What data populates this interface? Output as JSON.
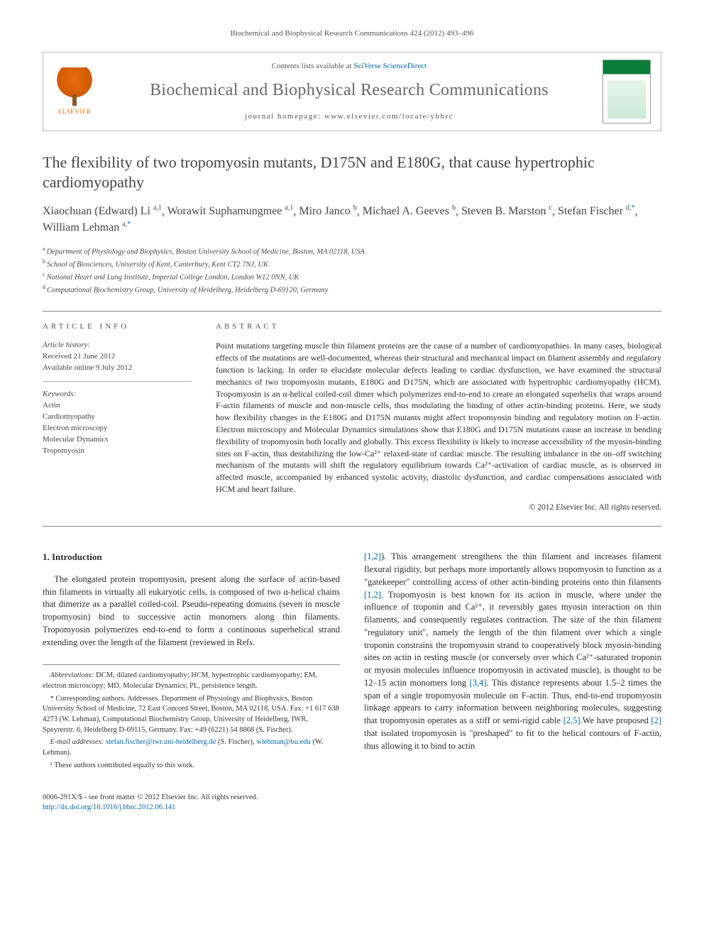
{
  "citation": "Biochemical and Biophysical Research Communications 424 (2012) 493–496",
  "header": {
    "contents_prefix": "Contents lists available at ",
    "contents_link": "SciVerse ScienceDirect",
    "journal": "Biochemical and Biophysical Research Communications",
    "homepage_prefix": "journal homepage: ",
    "homepage_url": "www.elsevier.com/locate/ybbrc",
    "publisher": "ELSEVIER"
  },
  "title": "The flexibility of two tropomyosin mutants, D175N and E180G, that cause hypertrophic cardiomyopathy",
  "authors_html": "Xiaochuan (Edward) Li|a,1|, Worawit Suphamungmee|a,1|, Miro Janco|b|, Michael A. Geeves|b|, Steven B. Marston|c|, Stefan Fischer|d,*|, William Lehman|a,*|",
  "authors": [
    {
      "name": "Xiaochuan (Edward) Li",
      "sup": "a,1"
    },
    {
      "name": "Worawit Suphamungmee",
      "sup": "a,1"
    },
    {
      "name": "Miro Janco",
      "sup": "b"
    },
    {
      "name": "Michael A. Geeves",
      "sup": "b"
    },
    {
      "name": "Steven B. Marston",
      "sup": "c"
    },
    {
      "name": "Stefan Fischer",
      "sup": "d,",
      "star": true
    },
    {
      "name": "William Lehman",
      "sup": "a,",
      "star": true
    }
  ],
  "affiliations": [
    {
      "sup": "a",
      "text": "Department of Physiology and Biophysics, Boston University School of Medicine, Boston, MA 02118, USA"
    },
    {
      "sup": "b",
      "text": "School of Biosciences, University of Kent, Canterbury, Kent CT2 7NJ, UK"
    },
    {
      "sup": "c",
      "text": "National Heart and Lung Institute, Imperial College London, London W12 0NN, UK"
    },
    {
      "sup": "d",
      "text": "Computational Biochemistry Group, University of Heidelberg, Heidelberg D-69120, Germany"
    }
  ],
  "article_info": {
    "label": "ARTICLE INFO",
    "history_label": "Article history:",
    "received": "Received 21 June 2012",
    "online": "Available online 9 July 2012",
    "keywords_label": "Keywords:",
    "keywords": [
      "Actin",
      "Cardiomyopathy",
      "Electron microscopy",
      "Molecular Dynamics",
      "Tropomyosin"
    ]
  },
  "abstract": {
    "label": "ABSTRACT",
    "text": "Point mutations targeting muscle thin filament proteins are the cause of a number of cardiomyopathies. In many cases, biological effects of the mutations are well-documented, whereas their structural and mechanical impact on filament assembly and regulatory function is lacking. In order to elucidate molecular defects leading to cardiac dysfunction, we have examined the structural mechanics of two tropomyosin mutants, E180G and D175N, which are associated with hypertrophic cardiomyopathy (HCM). Tropomyosin is an α-helical coiled-coil dimer which polymerizes end-to-end to create an elongated superhelix that wraps around F-actin filaments of muscle and non-muscle cells, thus modulating the binding of other actin-binding proteins. Here, we study how flexibility changes in the E180G and D175N mutants might affect tropomyosin binding and regulatory motion on F-actin. Electron microscopy and Molecular Dynamics simulations show that E180G and D175N mutations cause an increase in bending flexibility of tropomyosin both locally and globally. This excess flexibility is likely to increase accessibility of the myosin-binding sites on F-actin, thus destabilizing the low-Ca²⁺ relaxed-state of cardiac muscle. The resulting imbalance in the on–off switching mechanism of the mutants will shift the regulatory equilibrium towards Ca²⁺-activation of cardiac muscle, as is observed in affected muscle, accompanied by enhanced systolic activity, diastolic dysfunction, and cardiac compensations associated with HCM and heart failure.",
    "copyright": "© 2012 Elsevier Inc. All rights reserved."
  },
  "body": {
    "intro_heading": "1. Introduction",
    "col1_para": "The elongated protein tropomyosin, present along the surface of actin-based thin filaments in virtually all eukaryotic cells, is composed of two α-helical chains that dimerize as a parallel coiled-coil. Pseudo-repeating domains (seven in muscle tropomyosin) bind to successive actin monomers along thin filaments. Tropomyosin polymerizes end-to-end to form a continuous superhelical strand extending over the length of the filament (reviewed in Refs.",
    "col2_para_pre": "",
    "col2_ref1": "[1,2]",
    "col2_para_mid1": "). This arrangement strengthens the thin filament and increases filament flexural rigidity, but perhaps more importantly allows tropomyosin to function as a \"gatekeeper\" controlling access of other actin-binding proteins onto thin filaments ",
    "col2_ref2": "[1,2]",
    "col2_para_mid2": ". Tropomyosin is best known for its action in muscle, where under the influence of troponin and Ca²⁺, it reversibly gates myosin interaction on thin filaments, and consequently regulates contraction. The size of the thin filament \"regulatory unit\", namely the length of the thin filament over which a single troponin constrains the tropomyosin strand to cooperatively block myosin-binding sites on actin in resting muscle (or conversely over which Ca²⁺-saturated troponin or myosin molecules influence tropomyosin in activated muscle), is thought to be 12–15 actin monomers long ",
    "col2_ref3": "[3,4]",
    "col2_para_mid3": ". This distance represents about 1.5–2 times the span of a single tropomyosin molecule on F-actin. Thus, end-to-end tropomyosin linkage appears to carry information between neighboring molecules, suggesting that tropomyosin operates as a stiff or semi-rigid cable ",
    "col2_ref4": "[2,5]",
    "col2_para_mid4": ".We have proposed ",
    "col2_ref5": "[2]",
    "col2_para_end": " that isolated tropomyosin is \"preshaped\" to fit to the helical contours of F-actin, thus allowing it to bind to actin"
  },
  "footnotes": {
    "abbrev_label": "Abbreviations:",
    "abbrev_text": " DCM, dilated cardiomyopathy; HCM, hypertrophic cardiomyopathy; EM, electron microscopy; MD, Molecular Dynamics; PL, persistence length.",
    "corr_label": "* Corresponding authors. Addresses. ",
    "corr_text": "Department of Physiology and Biophysics, Boston University School of Medicine, 72 East Concord Street, Boston, MA 02118, USA. Fax: +1 617 638 4273 (W. Lehman), Computational Biochemistry Group, University of Heidelberg, IWR, Speyrerstr. 6, Heidelberg D-69115, Germany. Fax: +49 (6221) 54 8868 (S. Fischer).",
    "email_label": "E-mail addresses: ",
    "email1": "stefan.fischer@iwr.uni-heidelberg.de",
    "email1_paren": " (S. Fischer), ",
    "email2": "wlehman@bu.edu",
    "email2_paren": " (W. Lehman).",
    "contrib": "¹ These authors contributed equally to this work."
  },
  "doi": {
    "line1": "0006-291X/$ - see front matter © 2012 Elsevier Inc. All rights reserved.",
    "line2": "http://dx.doi.org/10.1016/j.bbrc.2012.06.141"
  },
  "colors": {
    "link": "#0066aa",
    "text": "#2b2b2b",
    "muted": "#555555",
    "elsevier_orange": "#e8700f",
    "journal_green": "#0b7d3a"
  }
}
